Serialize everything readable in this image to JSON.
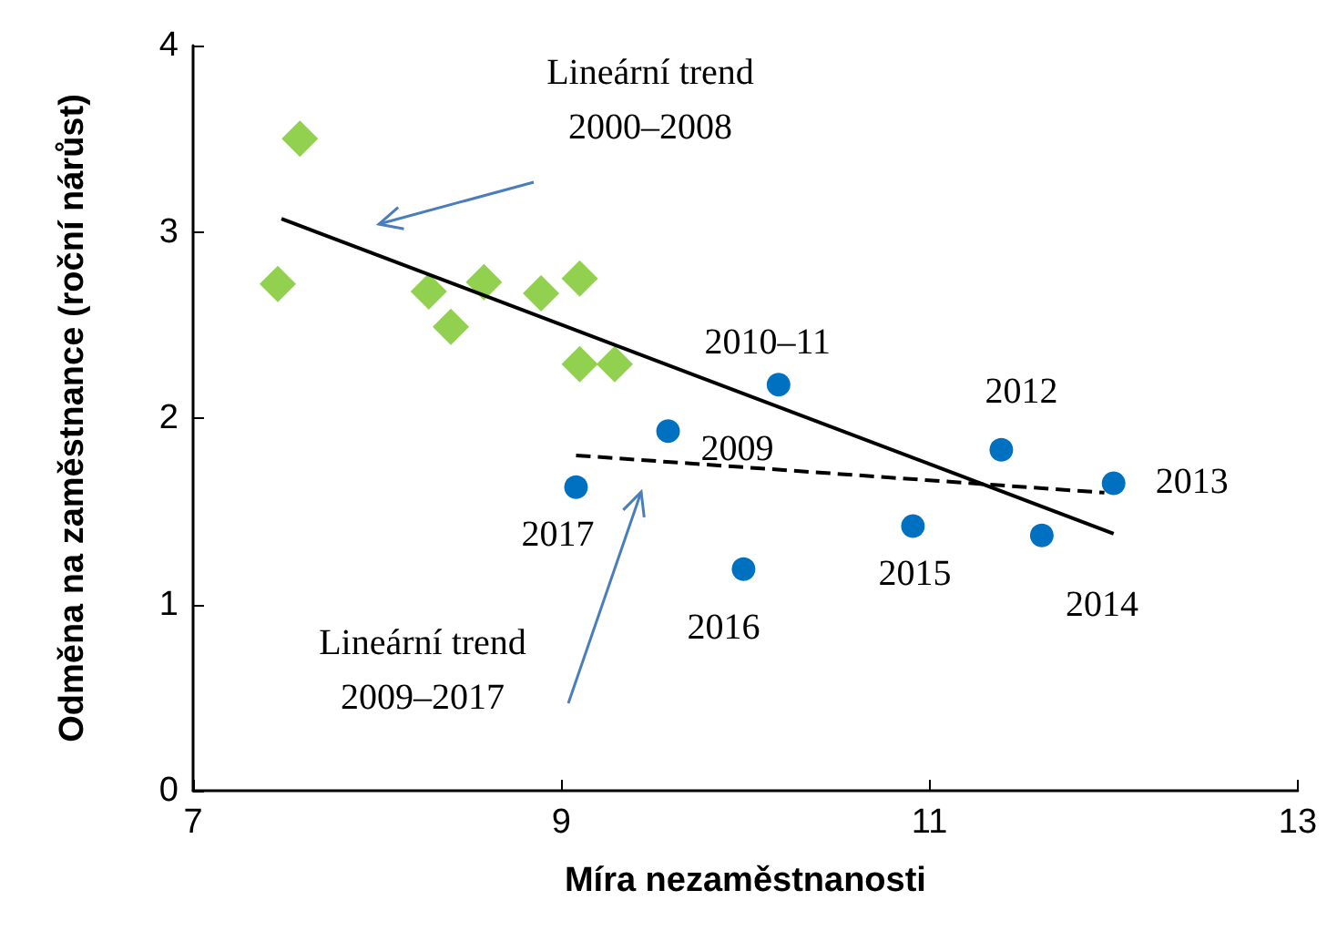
{
  "chart_data": {
    "type": "scatter",
    "xlabel": "Míra nezaměstnanosti",
    "ylabel": "Odměna na zaměstnance (roční nárůst)",
    "xlim": [
      7,
      13
    ],
    "xticks": [
      7,
      9,
      11,
      13
    ],
    "ylim": [
      0,
      4
    ],
    "yticks": [
      0,
      1,
      2,
      3,
      4
    ],
    "grid": false,
    "series": [
      {
        "marker": "diamond",
        "color": "#92d050",
        "x": [
          7.46,
          7.58,
          8.28,
          8.4,
          8.58,
          8.89,
          9.1,
          9.1,
          9.29
        ],
        "values": [
          2.72,
          3.5,
          2.68,
          2.49,
          2.73,
          2.67,
          2.75,
          2.29,
          2.29
        ]
      },
      {
        "marker": "circle",
        "color": "#0070c0",
        "x": [
          9.08,
          9.58,
          9.99,
          10.18,
          10.91,
          11.39,
          11.61,
          12.0
        ],
        "values": [
          1.63,
          1.93,
          1.19,
          2.18,
          1.42,
          1.83,
          1.37,
          1.65
        ]
      },
      {
        "type": "line",
        "marker": "none",
        "line_style": "solid",
        "color": "#000000",
        "x": [
          7.48,
          12.0
        ],
        "values": [
          3.07,
          1.38
        ]
      },
      {
        "type": "line",
        "marker": "none",
        "line_style": "dashed",
        "color": "#000000",
        "x": [
          9.08,
          11.95
        ],
        "values": [
          1.8,
          1.6
        ]
      }
    ],
    "annotations": [
      "Lineární trend\n2000–2008",
      "Lineární trend\n2009–2017",
      {
        "text": "2010–11",
        "x": 10.18,
        "y": 2.18
      },
      {
        "text": "2009",
        "x": 9.58,
        "y": 1.93
      },
      {
        "text": "2017",
        "x": 9.08,
        "y": 1.63
      },
      {
        "text": "2016",
        "x": 9.99,
        "y": 1.19
      },
      {
        "text": "2015",
        "x": 10.91,
        "y": 1.42
      },
      {
        "text": "2012",
        "x": 11.39,
        "y": 1.83
      },
      {
        "text": "2014",
        "x": 11.61,
        "y": 1.37
      },
      {
        "text": "2013",
        "x": 12.0,
        "y": 1.65
      }
    ]
  }
}
